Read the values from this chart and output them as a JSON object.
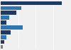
{
  "bars": [
    {
      "value": 88,
      "color": "#1f3864"
    },
    {
      "value": 30,
      "color": "#2e75b6"
    },
    {
      "value": 22,
      "color": "#1f3864"
    },
    {
      "value": 12,
      "color": "#2e75b6"
    },
    {
      "value": 8,
      "color": "#1f3864"
    },
    {
      "value": 32,
      "color": "#2e75b6"
    },
    {
      "value": 14,
      "color": "#1f3864"
    },
    {
      "value": 8,
      "color": "#2e75b6"
    },
    {
      "value": 5,
      "color": "#1f3864"
    },
    {
      "value": 3,
      "color": "#7f7f7f"
    }
  ],
  "xlim": [
    0,
    100
  ],
  "bar_height": 0.75,
  "background_color": "#f0f0f0",
  "grid_color": "#ffffff",
  "figsize": [
    1.0,
    0.71
  ],
  "dpi": 100
}
